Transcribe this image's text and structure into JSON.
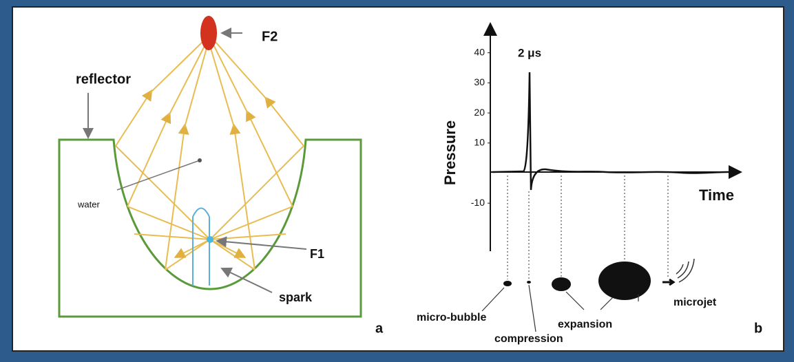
{
  "panel_a": {
    "f2": "F2",
    "reflector": "reflector",
    "water": "water",
    "f1": "F1",
    "spark": "spark",
    "tag": "a"
  },
  "panel_b": {
    "y_axis_label": "Pressure",
    "x_axis_label": "Time",
    "pulse_label": "2 μs",
    "yticks": [
      40,
      30,
      20,
      10,
      -10
    ],
    "stages": [
      "micro-bubble",
      "compression",
      "expansion",
      "microjet"
    ],
    "tag": "b"
  }
}
